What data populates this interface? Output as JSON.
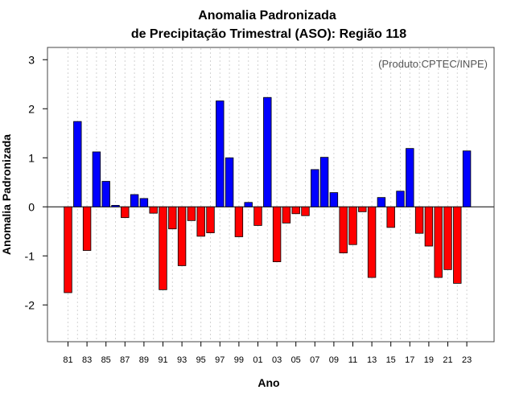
{
  "chart_data": {
    "type": "bar",
    "title_line1": "Anomalia Padronizada",
    "title_line2": "de Precipitação Trimestral (ASO): Região 118",
    "xlabel": "Ano",
    "ylabel": "Anomalia Padronizada",
    "annotation": "(Produto:CPTEC/INPE)",
    "ylim": [
      -2.75,
      3.25
    ],
    "yticks": [
      -2,
      -1,
      0,
      1,
      2,
      3
    ],
    "ytick_labels": [
      "-2",
      "-1",
      "0",
      "1",
      "2",
      "3"
    ],
    "grid": true,
    "categories": [
      "81",
      "82",
      "83",
      "84",
      "85",
      "86",
      "87",
      "88",
      "89",
      "90",
      "91",
      "92",
      "93",
      "94",
      "95",
      "96",
      "97",
      "98",
      "99",
      "00",
      "01",
      "02",
      "03",
      "04",
      "05",
      "06",
      "07",
      "08",
      "09",
      "10",
      "11",
      "12",
      "13",
      "14",
      "15",
      "16",
      "17",
      "18",
      "19",
      "20",
      "21",
      "22",
      "23"
    ],
    "xtick_labels": [
      "81",
      "83",
      "85",
      "87",
      "89",
      "91",
      "93",
      "95",
      "97",
      "99",
      "01",
      "03",
      "05",
      "07",
      "09",
      "11",
      "13",
      "15",
      "17",
      "19",
      "21",
      "23"
    ],
    "values": [
      -1.75,
      1.74,
      -0.89,
      1.12,
      0.52,
      0.03,
      -0.22,
      0.25,
      0.17,
      -0.13,
      -1.69,
      -0.45,
      -1.2,
      -0.28,
      -0.6,
      -0.53,
      2.16,
      1.0,
      -0.61,
      0.09,
      -0.38,
      2.23,
      -1.12,
      -0.33,
      -0.14,
      -0.18,
      0.76,
      1.01,
      0.29,
      -0.94,
      -0.77,
      -0.1,
      -1.44,
      0.19,
      -0.42,
      0.32,
      1.19,
      -0.54,
      -0.8,
      -1.44,
      -1.28,
      -1.56,
      1.14
    ],
    "colors": {
      "positive": "#0000ff",
      "negative": "#ff0000",
      "stroke": "#000000",
      "grid": "#d3d3d3"
    }
  }
}
